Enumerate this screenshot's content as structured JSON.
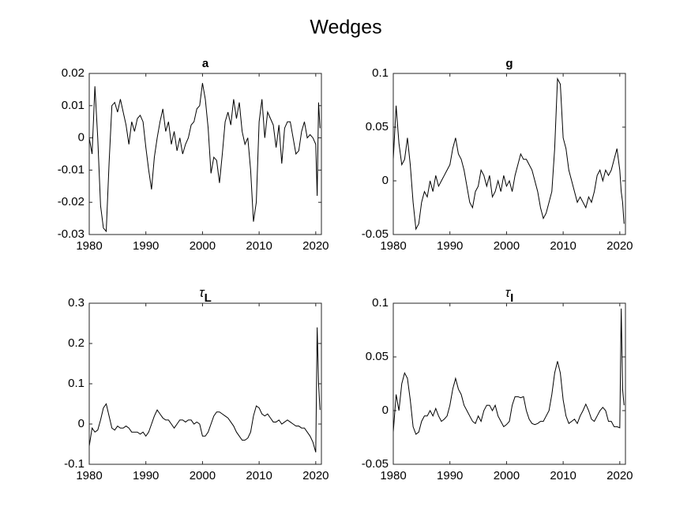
{
  "title": "Wedges",
  "chart_data": [
    {
      "type": "line",
      "title": "a",
      "x": [
        1980,
        1980.5,
        1981,
        1981.5,
        1982,
        1982.5,
        1983,
        1983.5,
        1984,
        1984.5,
        1985,
        1985.5,
        1986,
        1986.5,
        1987,
        1987.5,
        1988,
        1988.5,
        1989,
        1989.5,
        1990,
        1990.5,
        1991,
        1991.5,
        1992,
        1992.5,
        1993,
        1993.5,
        1994,
        1994.5,
        1995,
        1995.5,
        1996,
        1996.5,
        1997,
        1997.5,
        1998,
        1998.5,
        1999,
        1999.5,
        2000,
        2000.5,
        2001,
        2001.5,
        2002,
        2002.5,
        2003,
        2003.5,
        2004,
        2004.5,
        2005,
        2005.5,
        2006,
        2006.5,
        2007,
        2007.5,
        2008,
        2008.5,
        2009,
        2009.5,
        2010,
        2010.5,
        2011,
        2011.5,
        2012,
        2012.5,
        2013,
        2013.5,
        2014,
        2014.5,
        2015,
        2015.5,
        2016,
        2016.5,
        2017,
        2017.5,
        2018,
        2018.5,
        2019,
        2019.5,
        2020,
        2020.25,
        2020.5,
        2020.75
      ],
      "series": [
        {
          "color": "#000000",
          "values": [
            0,
            -0.005,
            0.016,
            0,
            -0.021,
            -0.028,
            -0.029,
            -0.008,
            0.01,
            0.011,
            0.008,
            0.012,
            0.008,
            0.004,
            -0.002,
            0.005,
            0.002,
            0.006,
            0.007,
            0.005,
            -0.003,
            -0.01,
            -0.016,
            -0.006,
            0,
            0.005,
            0.009,
            0.002,
            0.005,
            -0.002,
            0.002,
            -0.004,
            0,
            -0.005,
            -0.002,
            0,
            0.004,
            0.005,
            0.009,
            0.01,
            0.017,
            0.012,
            0.003,
            -0.011,
            -0.006,
            -0.007,
            -0.014,
            -0.005,
            0.005,
            0.008,
            0.004,
            0.012,
            0.006,
            0.011,
            0.002,
            -0.002,
            0,
            -0.01,
            -0.026,
            -0.02,
            0.005,
            0.012,
            0,
            0.008,
            0.006,
            0.004,
            -0.003,
            0.004,
            -0.008,
            0.003,
            0.005,
            0.005,
            0,
            -0.005,
            -0.004,
            0.002,
            0.005,
            0,
            0.001,
            0,
            -0.002,
            -0.018,
            0.011,
            0.003
          ]
        }
      ],
      "xlim": [
        1980,
        2021
      ],
      "xticks": [
        1980,
        1990,
        2000,
        2010,
        2020
      ],
      "ylim": [
        -0.03,
        0.02
      ],
      "yticks": [
        -0.03,
        -0.02,
        -0.01,
        0,
        0.01,
        0.02
      ]
    },
    {
      "type": "line",
      "title": "g",
      "x": [
        1980,
        1980.5,
        1981,
        1981.5,
        1982,
        1982.5,
        1983,
        1983.5,
        1984,
        1984.5,
        1985,
        1985.5,
        1986,
        1986.5,
        1987,
        1987.5,
        1988,
        1988.5,
        1989,
        1989.5,
        1990,
        1990.5,
        1991,
        1991.5,
        1992,
        1992.5,
        1993,
        1993.5,
        1994,
        1994.5,
        1995,
        1995.5,
        1996,
        1996.5,
        1997,
        1997.5,
        1998,
        1998.5,
        1999,
        1999.5,
        2000,
        2000.5,
        2001,
        2001.5,
        2002,
        2002.5,
        2003,
        2003.5,
        2004,
        2004.5,
        2005,
        2005.5,
        2006,
        2006.5,
        2007,
        2007.5,
        2008,
        2008.5,
        2009,
        2009.5,
        2010,
        2010.5,
        2011,
        2011.5,
        2012,
        2012.5,
        2013,
        2013.5,
        2014,
        2014.5,
        2015,
        2015.5,
        2016,
        2016.5,
        2017,
        2017.5,
        2018,
        2018.5,
        2019,
        2019.5,
        2020,
        2020.25,
        2020.5,
        2020.75
      ],
      "series": [
        {
          "color": "#000000",
          "values": [
            0.02,
            0.07,
            0.035,
            0.015,
            0.02,
            0.04,
            0.015,
            -0.02,
            -0.045,
            -0.04,
            -0.02,
            -0.01,
            -0.015,
            0,
            -0.01,
            0.005,
            -0.005,
            0,
            0.005,
            0.01,
            0.015,
            0.03,
            0.04,
            0.025,
            0.02,
            0.01,
            -0.005,
            -0.02,
            -0.025,
            -0.01,
            -0.005,
            0.01,
            0.005,
            -0.005,
            0.005,
            -0.015,
            -0.01,
            0,
            -0.01,
            0.005,
            -0.005,
            0,
            -0.01,
            0.005,
            0.015,
            0.025,
            0.02,
            0.02,
            0.015,
            0.01,
            0,
            -0.01,
            -0.025,
            -0.035,
            -0.03,
            -0.02,
            -0.01,
            0.03,
            0.095,
            0.09,
            0.04,
            0.03,
            0.01,
            0,
            -0.01,
            -0.02,
            -0.015,
            -0.02,
            -0.025,
            -0.015,
            -0.02,
            -0.01,
            0.005,
            0.01,
            0,
            0.01,
            0.005,
            0.01,
            0.02,
            0.03,
            0.01,
            -0.01,
            -0.02,
            -0.04
          ]
        }
      ],
      "xlim": [
        1980,
        2021
      ],
      "xticks": [
        1980,
        1990,
        2000,
        2010,
        2020
      ],
      "ylim": [
        -0.05,
        0.1
      ],
      "yticks": [
        -0.05,
        0,
        0.05,
        0.1
      ]
    },
    {
      "type": "line",
      "title": "τ",
      "title_subscript": "L",
      "x": [
        1980,
        1980.5,
        1981,
        1981.5,
        1982,
        1982.5,
        1983,
        1983.5,
        1984,
        1984.5,
        1985,
        1985.5,
        1986,
        1986.5,
        1987,
        1987.5,
        1988,
        1988.5,
        1989,
        1989.5,
        1990,
        1990.5,
        1991,
        1991.5,
        1992,
        1992.5,
        1993,
        1993.5,
        1994,
        1994.5,
        1995,
        1995.5,
        1996,
        1996.5,
        1997,
        1997.5,
        1998,
        1998.5,
        1999,
        1999.5,
        2000,
        2000.5,
        2001,
        2001.5,
        2002,
        2002.5,
        2003,
        2003.5,
        2004,
        2004.5,
        2005,
        2005.5,
        2006,
        2006.5,
        2007,
        2007.5,
        2008,
        2008.5,
        2009,
        2009.5,
        2010,
        2010.5,
        2011,
        2011.5,
        2012,
        2012.5,
        2013,
        2013.5,
        2014,
        2014.5,
        2015,
        2015.5,
        2016,
        2016.5,
        2017,
        2017.5,
        2018,
        2018.5,
        2019,
        2019.5,
        2020,
        2020.25,
        2020.5,
        2020.75
      ],
      "series": [
        {
          "color": "#000000",
          "values": [
            -0.055,
            -0.01,
            -0.02,
            -0.015,
            0.01,
            0.04,
            0.05,
            0.02,
            -0.01,
            -0.015,
            -0.005,
            -0.01,
            -0.01,
            -0.005,
            -0.01,
            -0.02,
            -0.02,
            -0.02,
            -0.025,
            -0.02,
            -0.03,
            -0.02,
            0,
            0.02,
            0.035,
            0.025,
            0.015,
            0.01,
            0.01,
            0,
            -0.01,
            0,
            0.01,
            0.01,
            0.005,
            0.01,
            0.01,
            0,
            0.005,
            0,
            -0.03,
            -0.03,
            -0.02,
            0,
            0.02,
            0.03,
            0.03,
            0.025,
            0.02,
            0.015,
            0.005,
            -0.005,
            -0.02,
            -0.03,
            -0.04,
            -0.04,
            -0.035,
            -0.02,
            0.02,
            0.045,
            0.04,
            0.025,
            0.02,
            0.025,
            0.015,
            0.005,
            0.005,
            0.01,
            0,
            0.005,
            0.01,
            0.005,
            0,
            -0.005,
            -0.005,
            -0.01,
            -0.01,
            -0.02,
            -0.03,
            -0.045,
            -0.07,
            0.24,
            0.1,
            0.035
          ]
        }
      ],
      "xlim": [
        1980,
        2021
      ],
      "xticks": [
        1980,
        1990,
        2000,
        2010,
        2020
      ],
      "ylim": [
        -0.1,
        0.3
      ],
      "yticks": [
        -0.1,
        0,
        0.1,
        0.2,
        0.3
      ]
    },
    {
      "type": "line",
      "title": "τ",
      "title_subscript": "I",
      "x": [
        1980,
        1980.5,
        1981,
        1981.5,
        1982,
        1982.5,
        1983,
        1983.5,
        1984,
        1984.5,
        1985,
        1985.5,
        1986,
        1986.5,
        1987,
        1987.5,
        1988,
        1988.5,
        1989,
        1989.5,
        1990,
        1990.5,
        1991,
        1991.5,
        1992,
        1992.5,
        1993,
        1993.5,
        1994,
        1994.5,
        1995,
        1995.5,
        1996,
        1996.5,
        1997,
        1997.5,
        1998,
        1998.5,
        1999,
        1999.5,
        2000,
        2000.5,
        2001,
        2001.5,
        2002,
        2002.5,
        2003,
        2003.5,
        2004,
        2004.5,
        2005,
        2005.5,
        2006,
        2006.5,
        2007,
        2007.5,
        2008,
        2008.5,
        2009,
        2009.5,
        2010,
        2010.5,
        2011,
        2011.5,
        2012,
        2012.5,
        2013,
        2013.5,
        2014,
        2014.5,
        2015,
        2015.5,
        2016,
        2016.5,
        2017,
        2017.5,
        2018,
        2018.5,
        2019,
        2019.5,
        2020,
        2020.25,
        2020.5,
        2020.75
      ],
      "series": [
        {
          "color": "#000000",
          "values": [
            -0.02,
            0.015,
            0,
            0.025,
            0.035,
            0.03,
            0.01,
            -0.015,
            -0.022,
            -0.02,
            -0.01,
            -0.005,
            -0.005,
            0,
            -0.005,
            0.002,
            -0.005,
            -0.01,
            -0.008,
            -0.005,
            0.005,
            0.02,
            0.03,
            0.02,
            0.015,
            0.005,
            0,
            -0.005,
            -0.01,
            -0.012,
            -0.005,
            -0.01,
            0,
            0.005,
            0.005,
            0,
            0.005,
            -0.005,
            -0.01,
            -0.015,
            -0.013,
            -0.01,
            0.005,
            0.013,
            0.013,
            0.012,
            0.013,
            0,
            -0.008,
            -0.012,
            -0.013,
            -0.012,
            -0.01,
            -0.01,
            -0.005,
            0,
            0.015,
            0.035,
            0.046,
            0.035,
            0.01,
            -0.005,
            -0.012,
            -0.01,
            -0.008,
            -0.012,
            -0.005,
            0,
            0.006,
            0,
            -0.008,
            -0.01,
            -0.005,
            0,
            0.003,
            0,
            -0.01,
            -0.01,
            -0.015,
            -0.015,
            -0.016,
            0.095,
            0.02,
            0.005
          ]
        }
      ],
      "xlim": [
        1980,
        2021
      ],
      "xticks": [
        1980,
        1990,
        2000,
        2010,
        2020
      ],
      "ylim": [
        -0.05,
        0.1
      ],
      "yticks": [
        -0.05,
        0,
        0.05,
        0.1
      ]
    }
  ]
}
